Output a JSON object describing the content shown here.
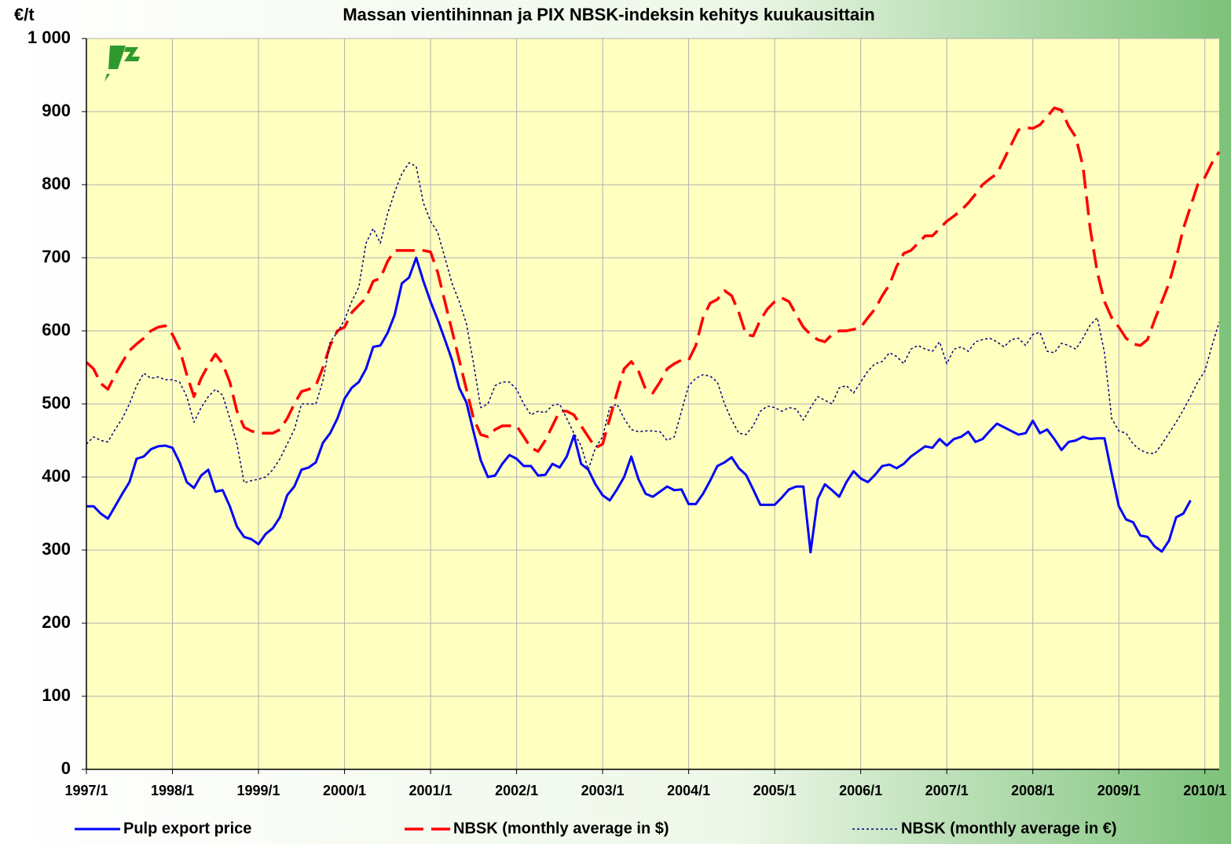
{
  "chart_data": {
    "type": "line",
    "title": "Massan vientihinnan ja PIX NBSK-indeksin kehitys kuukausittain",
    "y_label": "€/t",
    "categories": [
      "1997/1",
      null,
      null,
      null,
      null,
      null,
      null,
      null,
      null,
      null,
      null,
      null,
      "1998/1",
      null,
      null,
      null,
      null,
      null,
      null,
      null,
      null,
      null,
      null,
      null,
      "1999/1",
      null,
      null,
      null,
      null,
      null,
      null,
      null,
      null,
      null,
      null,
      null,
      "2000/1",
      null,
      null,
      null,
      null,
      null,
      null,
      null,
      null,
      null,
      null,
      null,
      "2001/1",
      null,
      null,
      null,
      null,
      null,
      null,
      null,
      null,
      null,
      null,
      null,
      "2002/1",
      null,
      null,
      null,
      null,
      null,
      null,
      null,
      null,
      null,
      null,
      null,
      "2003/1",
      null,
      null,
      null,
      null,
      null,
      null,
      null,
      null,
      null,
      null,
      null,
      "2004/1",
      null,
      null,
      null,
      null,
      null,
      null,
      null,
      null,
      null,
      null,
      null,
      "2005/1",
      null,
      null,
      null,
      null,
      null,
      null,
      null,
      null,
      null,
      null,
      null,
      "2006/1",
      null,
      null,
      null,
      null,
      null,
      null,
      null,
      null,
      null,
      null,
      null,
      "2007/1",
      null,
      null,
      null,
      null,
      null,
      null,
      null,
      null,
      null,
      null,
      null,
      "2008/1",
      null,
      null,
      null,
      null,
      null,
      null,
      null,
      null,
      null,
      null,
      null,
      "2009/1",
      null,
      null,
      null,
      null,
      null,
      null,
      null,
      null,
      null,
      null,
      null,
      "2010/1",
      null,
      null
    ],
    "series": [
      {
        "name": "Pulp export price",
        "color": "#0000ff",
        "style": "solid",
        "values": [
          360,
          360,
          350,
          343,
          360,
          377,
          393,
          425,
          428,
          438,
          442,
          443,
          440,
          420,
          393,
          385,
          402,
          410,
          380,
          382,
          360,
          332,
          318,
          315,
          308,
          322,
          330,
          345,
          375,
          387,
          410,
          413,
          420,
          447,
          460,
          480,
          507,
          522,
          530,
          548,
          578,
          580,
          597,
          622,
          665,
          673,
          700,
          668,
          640,
          615,
          588,
          560,
          522,
          502,
          462,
          423,
          400,
          402,
          418,
          430,
          425,
          415,
          415,
          402,
          403,
          418,
          413,
          428,
          457,
          418,
          410,
          390,
          375,
          368,
          383,
          400,
          428,
          397,
          377,
          373,
          380,
          387,
          382,
          383,
          363,
          363,
          377,
          395,
          415,
          420,
          427,
          412,
          403,
          383,
          362,
          362,
          362,
          372,
          383,
          387,
          387,
          297,
          370,
          390,
          382,
          373,
          393,
          408,
          398,
          393,
          403,
          415,
          417,
          412,
          418,
          428,
          435,
          442,
          440,
          452,
          443,
          452,
          455,
          462,
          448,
          452,
          463,
          473,
          468,
          463,
          458,
          460,
          477,
          460,
          465,
          452,
          437,
          448,
          450,
          455,
          452,
          453,
          453,
          405,
          360,
          342,
          338,
          320,
          318,
          305,
          298,
          313,
          345,
          350,
          368,
          null,
          null,
          null,
          null
        ]
      },
      {
        "name": "NBSK (monthly average in $)",
        "color": "#ff0000",
        "style": "dashed",
        "values": [
          557,
          548,
          528,
          520,
          540,
          557,
          573,
          582,
          590,
          600,
          605,
          607,
          595,
          575,
          540,
          510,
          535,
          553,
          568,
          555,
          530,
          490,
          468,
          463,
          460,
          460,
          460,
          465,
          480,
          500,
          517,
          520,
          525,
          550,
          580,
          600,
          605,
          625,
          635,
          645,
          668,
          672,
          695,
          710,
          710,
          710,
          710,
          710,
          708,
          680,
          640,
          600,
          560,
          520,
          480,
          458,
          455,
          465,
          470,
          470,
          470,
          455,
          440,
          435,
          450,
          470,
          490,
          490,
          485,
          470,
          455,
          440,
          445,
          480,
          515,
          548,
          558,
          545,
          520,
          515,
          530,
          548,
          555,
          560,
          560,
          580,
          618,
          638,
          643,
          655,
          648,
          625,
          595,
          593,
          615,
          630,
          640,
          645,
          640,
          622,
          605,
          595,
          588,
          585,
          595,
          600,
          600,
          602,
          605,
          618,
          630,
          648,
          663,
          688,
          706,
          710,
          720,
          730,
          730,
          740,
          750,
          757,
          765,
          775,
          787,
          800,
          808,
          815,
          835,
          855,
          875,
          878,
          877,
          882,
          893,
          905,
          902,
          880,
          865,
          825,
          740,
          680,
          640,
          618,
          605,
          590,
          582,
          580,
          588,
          615,
          640,
          665,
          700,
          740,
          770,
          800,
          810,
          830,
          845
        ]
      },
      {
        "name": "NBSK (monthly average in €)",
        "color": "#000080",
        "style": "dotted",
        "values": [
          445,
          455,
          450,
          448,
          465,
          480,
          500,
          525,
          542,
          535,
          537,
          533,
          533,
          530,
          510,
          475,
          495,
          510,
          520,
          512,
          480,
          445,
          392,
          395,
          397,
          400,
          410,
          425,
          445,
          465,
          500,
          500,
          500,
          532,
          585,
          598,
          615,
          640,
          660,
          720,
          740,
          720,
          760,
          790,
          815,
          830,
          825,
          775,
          750,
          735,
          700,
          665,
          640,
          610,
          555,
          495,
          500,
          525,
          530,
          530,
          520,
          500,
          485,
          490,
          488,
          498,
          500,
          480,
          460,
          443,
          410,
          440,
          455,
          495,
          500,
          480,
          465,
          462,
          463,
          463,
          462,
          450,
          455,
          490,
          525,
          535,
          540,
          538,
          530,
          500,
          478,
          460,
          458,
          470,
          490,
          497,
          495,
          490,
          495,
          493,
          478,
          495,
          510,
          505,
          500,
          522,
          525,
          515,
          530,
          545,
          555,
          558,
          570,
          565,
          555,
          575,
          580,
          575,
          572,
          585,
          555,
          575,
          578,
          572,
          585,
          588,
          590,
          585,
          578,
          588,
          590,
          580,
          595,
          598,
          572,
          570,
          583,
          580,
          575,
          590,
          608,
          618,
          570,
          480,
          463,
          460,
          445,
          437,
          433,
          432,
          445,
          460,
          475,
          492,
          510,
          530,
          545,
          580,
          612
        ]
      }
    ],
    "ylim": [
      0,
      1000
    ],
    "yticks": [
      0,
      100,
      200,
      300,
      400,
      500,
      600,
      700,
      800,
      900,
      {
        "value": 1000,
        "label": "1 000"
      }
    ],
    "grid": true,
    "legend": "bottom"
  }
}
